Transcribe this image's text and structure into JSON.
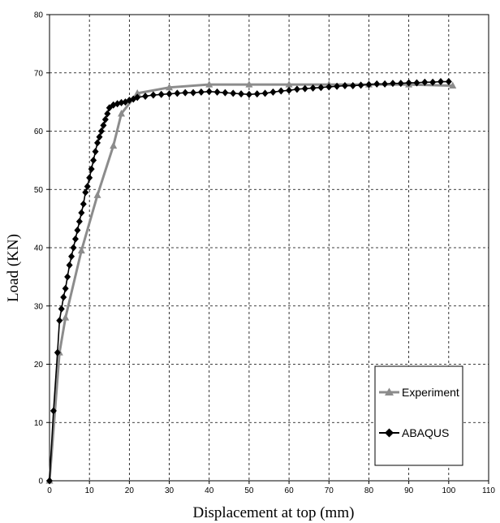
{
  "chart_data": {
    "type": "line",
    "title": "",
    "xlabel": "Displacement at top (mm)",
    "ylabel": "Load (KN)",
    "xlim": [
      0,
      110
    ],
    "ylim": [
      0,
      80
    ],
    "x_ticks": [
      "0",
      "10",
      "20",
      "30",
      "40",
      "50",
      "60",
      "70",
      "80",
      "90",
      "100",
      "110"
    ],
    "y_ticks": [
      "0",
      "10",
      "20",
      "30",
      "40",
      "50",
      "60",
      "70",
      "80"
    ],
    "grid": true,
    "legend_position": "bottom-right",
    "series": [
      {
        "name": "Experiment",
        "color": "#8c8c8c",
        "marker": "triangle",
        "x": [
          0,
          2.5,
          4,
          8,
          12,
          16,
          18,
          22,
          30,
          40,
          50,
          60,
          70,
          80,
          90,
          101
        ],
        "y": [
          0,
          22,
          28,
          39.5,
          49,
          57.5,
          63,
          66.5,
          67.5,
          68,
          68,
          68,
          68,
          68,
          68,
          67.8
        ]
      },
      {
        "name": "ABAQUS",
        "color": "#000000",
        "marker": "diamond",
        "x": [
          0,
          1,
          2,
          2.5,
          3,
          3.5,
          4,
          4.5,
          5,
          5.5,
          6,
          6.5,
          7,
          7.5,
          8,
          8.5,
          9,
          9.5,
          10,
          10.5,
          11,
          11.5,
          12,
          12.5,
          13,
          13.5,
          14,
          14.5,
          15,
          16,
          17,
          18,
          19,
          20,
          21,
          22,
          24,
          26,
          28,
          30,
          32,
          34,
          36,
          38,
          40,
          42,
          44,
          46,
          48,
          50,
          52,
          54,
          56,
          58,
          60,
          62,
          64,
          66,
          68,
          70,
          72,
          74,
          76,
          78,
          80,
          82,
          84,
          86,
          88,
          90,
          92,
          94,
          96,
          98,
          100
        ],
        "y": [
          0,
          12,
          22,
          27.5,
          29.5,
          31.5,
          33,
          35,
          37,
          38.5,
          40,
          41.5,
          43,
          44.5,
          46,
          47.5,
          49.5,
          50.5,
          52,
          53.5,
          55,
          56.5,
          58,
          59,
          60,
          61,
          62,
          63,
          64,
          64.5,
          64.7,
          64.9,
          65,
          65.3,
          65.5,
          65.8,
          66,
          66.2,
          66.3,
          66.4,
          66.5,
          66.6,
          66.6,
          66.7,
          66.8,
          66.7,
          66.6,
          66.5,
          66.4,
          66.3,
          66.4,
          66.5,
          66.7,
          66.9,
          67,
          67.2,
          67.3,
          67.4,
          67.5,
          67.6,
          67.7,
          67.8,
          67.8,
          67.9,
          68,
          68.1,
          68.1,
          68.2,
          68.2,
          68.3,
          68.3,
          68.4,
          68.4,
          68.5,
          68.5
        ]
      }
    ]
  }
}
